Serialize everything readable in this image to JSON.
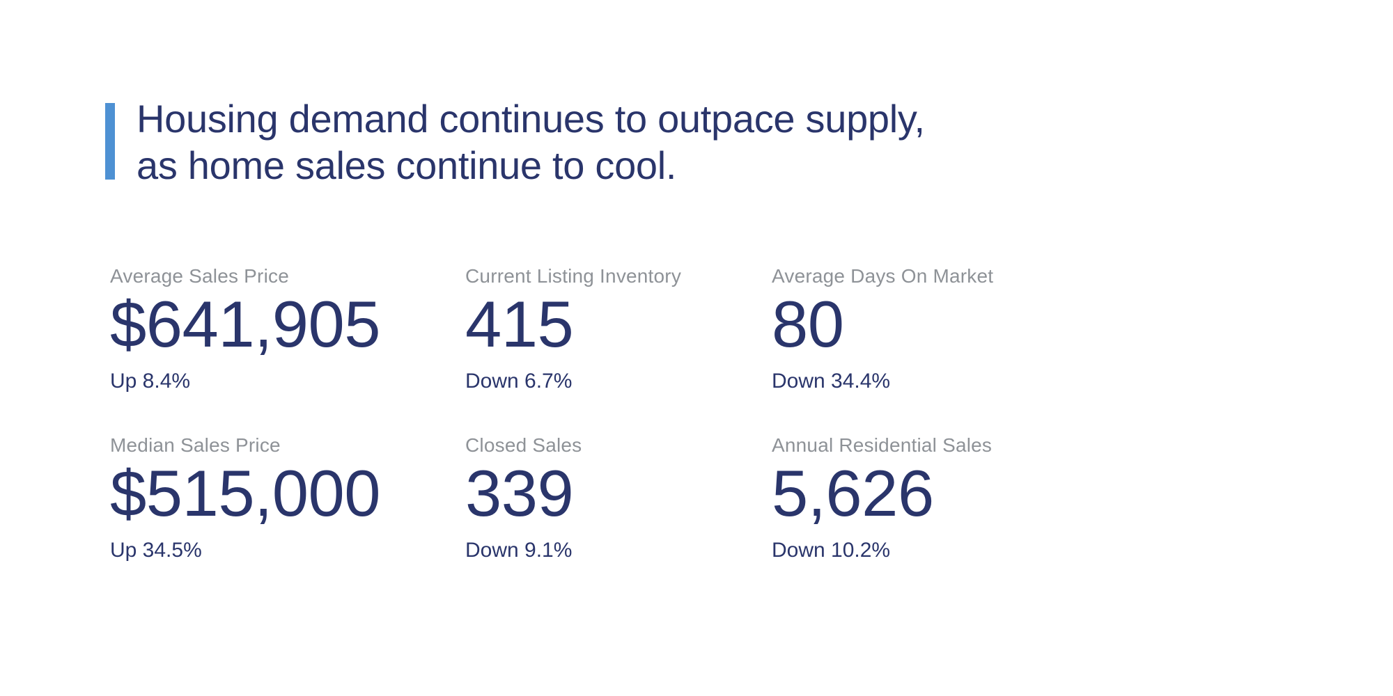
{
  "page": {
    "background_color": "#FFFFFF"
  },
  "headline": {
    "line1": "Housing demand continues to outpace supply,",
    "line2": "as home sales continue to cool.",
    "text_color": "#2A356B",
    "accent_bar_color": "#4E91D3"
  },
  "colors": {
    "navy_text": "#2A356B",
    "label_gray": "#8E9297",
    "accent_blue": "#4E91D3"
  },
  "stats": [
    {
      "label": "Average Sales Price",
      "value": "$641,905",
      "delta": "Up 8.4%"
    },
    {
      "label": "Current Listing Inventory",
      "value": "415",
      "delta": "Down 6.7%"
    },
    {
      "label": "Average Days On Market",
      "value": "80",
      "delta": "Down 34.4%"
    },
    {
      "label": "Median Sales Price",
      "value": "$515,000",
      "delta": "Up 34.5%"
    },
    {
      "label": "Closed Sales",
      "value": "339",
      "delta": "Down 9.1%"
    },
    {
      "label": "Annual Residential Sales",
      "value": "5,626",
      "delta": "Down 10.2%"
    }
  ]
}
